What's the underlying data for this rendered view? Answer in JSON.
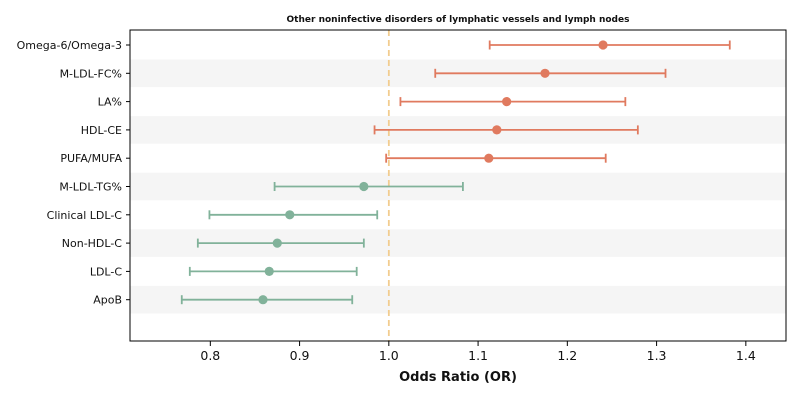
{
  "chart_data": {
    "type": "scatter",
    "subtype": "forest-plot",
    "title": "Other noninfective disorders of lymphatic vessels and lymph nodes",
    "xlabel": "Odds Ratio (OR)",
    "ylabel": "",
    "xlim": [
      0.71,
      1.445
    ],
    "xticks": [
      0.8,
      0.9,
      1.0,
      1.1,
      1.2,
      1.3,
      1.4
    ],
    "xtick_labels": [
      "0.8",
      "0.9",
      "1.0",
      "1.1",
      "1.2",
      "1.3",
      "1.4"
    ],
    "reference_line": 1.0,
    "row_shading": true,
    "grid": false,
    "colors": {
      "positive": "#e07a5f",
      "negative": "#81b29a",
      "reference_line": "#f2cc8f",
      "row_band": "#f5f5f5",
      "axis": "#000000"
    },
    "rows": [
      {
        "label": "Omega-6/Omega-3",
        "or": 1.24,
        "ci_lower": 1.113,
        "ci_upper": 1.382
      },
      {
        "label": "M-LDL-FC%",
        "or": 1.175,
        "ci_lower": 1.052,
        "ci_upper": 1.31
      },
      {
        "label": "LA%",
        "or": 1.132,
        "ci_lower": 1.013,
        "ci_upper": 1.265
      },
      {
        "label": "HDL-CE",
        "or": 1.121,
        "ci_lower": 0.984,
        "ci_upper": 1.279
      },
      {
        "label": "PUFA/MUFA",
        "or": 1.112,
        "ci_lower": 0.997,
        "ci_upper": 1.243
      },
      {
        "label": "M-LDL-TG%",
        "or": 0.972,
        "ci_lower": 0.872,
        "ci_upper": 1.083
      },
      {
        "label": "Clinical LDL-C",
        "or": 0.889,
        "ci_lower": 0.799,
        "ci_upper": 0.987
      },
      {
        "label": "Non-HDL-C",
        "or": 0.875,
        "ci_lower": 0.786,
        "ci_upper": 0.972
      },
      {
        "label": "LDL-C",
        "or": 0.866,
        "ci_lower": 0.777,
        "ci_upper": 0.964
      },
      {
        "label": "ApoB",
        "or": 0.859,
        "ci_lower": 0.768,
        "ci_upper": 0.959
      }
    ]
  }
}
